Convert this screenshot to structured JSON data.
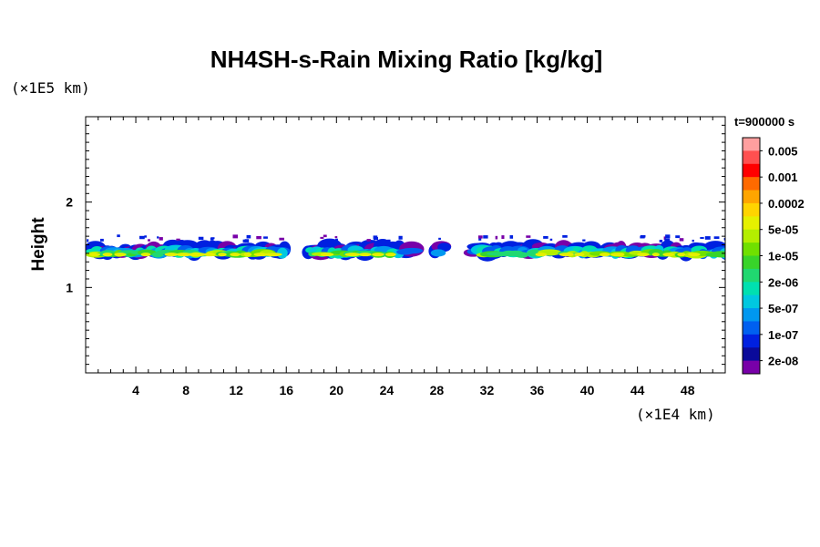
{
  "chart_data": {
    "type": "heatmap",
    "title": "NH4SH-s-Rain Mixing Ratio [kg/kg]",
    "ylabel": "Height",
    "x_unit": "(×1E4 km)",
    "y_unit": "(×1E5 km)",
    "time_label": "t=900000 s",
    "xlim": [
      0,
      51
    ],
    "ylim": [
      0,
      3
    ],
    "x_ticks": [
      "4",
      "8",
      "12",
      "16",
      "20",
      "24",
      "28",
      "32",
      "36",
      "40",
      "44",
      "48"
    ],
    "y_ticks": [
      "1",
      "2"
    ],
    "colorbar": {
      "labels": [
        "0.005",
        "0.001",
        "0.0002",
        "5e-05",
        "1e-05",
        "2e-06",
        "5e-07",
        "1e-07",
        "2e-08"
      ],
      "colors": [
        "#ff9f9f",
        "#ff5050",
        "#ff0000",
        "#ff6a00",
        "#ffa500",
        "#ffd400",
        "#e5f000",
        "#b4ee00",
        "#70e000",
        "#38d42a",
        "#20d870",
        "#00e0b0",
        "#00c8e0",
        "#0098f0",
        "#0060f0",
        "#0020e0",
        "#0a0a9a",
        "#7800a8"
      ]
    },
    "layer": {
      "base_height": 1.28,
      "top_height": 1.62,
      "peak_magnitude": "5e-05",
      "segments": [
        {
          "x_start": 0,
          "x_end": 15.8,
          "description": "continuous band"
        },
        {
          "x_start": 17.5,
          "x_end": 25.8,
          "description": "patches"
        },
        {
          "x_start": 27.6,
          "x_end": 28.4,
          "description": "small patch"
        },
        {
          "x_start": 30.5,
          "x_end": 51,
          "description": "continuous band"
        }
      ]
    }
  }
}
